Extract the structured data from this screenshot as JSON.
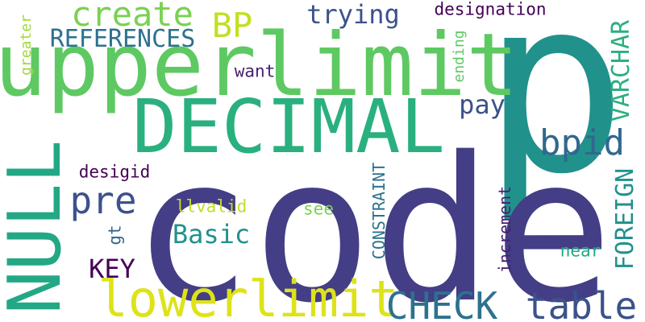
{
  "words": [
    {
      "text": "p",
      "color": "#21918c"
    },
    {
      "text": "code",
      "color": "#433e85"
    },
    {
      "text": "upperlimit",
      "color": "#5ec962"
    },
    {
      "text": "DECIMAL",
      "color": "#2ab07f"
    },
    {
      "text": "NULL",
      "color": "#22a884"
    },
    {
      "text": "lowerlimit",
      "color": "#dde318"
    },
    {
      "text": "CHECK",
      "color": "#2c728e"
    },
    {
      "text": "table",
      "color": "#3b528b"
    },
    {
      "text": "create",
      "color": "#7ad151"
    },
    {
      "text": "BP",
      "color": "#c2df23"
    },
    {
      "text": "trying",
      "color": "#3b528b"
    },
    {
      "text": "designation",
      "color": "#440154"
    },
    {
      "text": "REFERENCES",
      "color": "#2c728e"
    },
    {
      "text": "VARCHAR",
      "color": "#2ab07f"
    },
    {
      "text": "FOREIGN",
      "color": "#21918c"
    },
    {
      "text": "bpid",
      "color": "#31688e"
    },
    {
      "text": "pay",
      "color": "#3b528b"
    },
    {
      "text": "pre",
      "color": "#3b528b"
    },
    {
      "text": "Basic",
      "color": "#21918c"
    },
    {
      "text": "KEY",
      "color": "#440154"
    },
    {
      "text": "desigid",
      "color": "#440154"
    },
    {
      "text": "want",
      "color": "#481f70"
    },
    {
      "text": "greater",
      "color": "#a0da39"
    },
    {
      "text": "ending",
      "color": "#5ec962"
    },
    {
      "text": "CONSTRAINT",
      "color": "#2c728e"
    },
    {
      "text": "increment",
      "color": "#481f70"
    },
    {
      "text": "llvalid",
      "color": "#c2df23"
    },
    {
      "text": "see",
      "color": "#7ad151"
    },
    {
      "text": "near",
      "color": "#22a884"
    },
    {
      "text": "gt",
      "color": "#31688e"
    }
  ]
}
